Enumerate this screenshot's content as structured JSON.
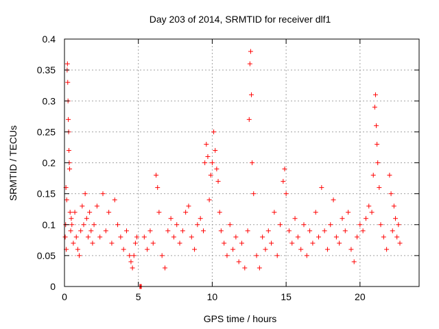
{
  "chart_data": {
    "type": "scatter",
    "title": "Day 203 of 2014, SRMTID for receiver dlf1",
    "xlabel": "GPS time / hours",
    "ylabel": "SRMTID / TECUs",
    "xlim": [
      0,
      24
    ],
    "ylim": [
      0,
      0.4
    ],
    "xticks": [
      0,
      5,
      10,
      15,
      20
    ],
    "yticks": [
      0,
      0.05,
      0.1,
      0.15,
      0.2,
      0.25,
      0.3,
      0.35,
      0.4
    ],
    "xtick_labels": [
      "0",
      "5",
      "10",
      "15",
      "20"
    ],
    "ytick_labels": [
      "0",
      "0.05",
      "0.1",
      "0.15",
      "0.2",
      "0.25",
      "0.3",
      "0.35",
      "0.4"
    ],
    "grid": true,
    "marker": "+",
    "color": "#ff0000",
    "series": [
      {
        "name": "SRMTID",
        "points": [
          [
            0.05,
            0.08
          ],
          [
            0.08,
            0.1
          ],
          [
            0.1,
            0.16
          ],
          [
            0.12,
            0.06
          ],
          [
            0.15,
            0.14
          ],
          [
            0.18,
            0.35
          ],
          [
            0.2,
            0.36
          ],
          [
            0.22,
            0.33
          ],
          [
            0.24,
            0.3
          ],
          [
            0.26,
            0.27
          ],
          [
            0.28,
            0.25
          ],
          [
            0.3,
            0.22
          ],
          [
            0.32,
            0.2
          ],
          [
            0.35,
            0.19
          ],
          [
            0.38,
            0.12
          ],
          [
            0.42,
            0.09
          ],
          [
            0.46,
            0.11
          ],
          [
            0.5,
            0.1
          ],
          [
            0.6,
            0.07
          ],
          [
            0.7,
            0.12
          ],
          [
            0.8,
            0.08
          ],
          [
            0.9,
            0.06
          ],
          [
            1.0,
            0.05
          ],
          [
            1.1,
            0.09
          ],
          [
            1.2,
            0.13
          ],
          [
            1.3,
            0.1
          ],
          [
            1.4,
            0.15
          ],
          [
            1.5,
            0.11
          ],
          [
            1.6,
            0.08
          ],
          [
            1.7,
            0.12
          ],
          [
            1.8,
            0.09
          ],
          [
            1.9,
            0.07
          ],
          [
            2.0,
            0.1
          ],
          [
            2.2,
            0.13
          ],
          [
            2.4,
            0.08
          ],
          [
            2.6,
            0.15
          ],
          [
            2.8,
            0.09
          ],
          [
            3.0,
            0.12
          ],
          [
            3.2,
            0.07
          ],
          [
            3.4,
            0.14
          ],
          [
            3.6,
            0.1
          ],
          [
            3.8,
            0.08
          ],
          [
            4.0,
            0.06
          ],
          [
            4.2,
            0.09
          ],
          [
            4.4,
            0.05
          ],
          [
            4.5,
            0.04
          ],
          [
            4.6,
            0.03
          ],
          [
            4.7,
            0.05
          ],
          [
            4.8,
            0.07
          ],
          [
            4.9,
            0.08
          ],
          [
            5.1,
            0.0
          ],
          [
            5.15,
            0.0
          ],
          [
            5.2,
            0.0
          ],
          [
            5.4,
            0.08
          ],
          [
            5.6,
            0.06
          ],
          [
            5.8,
            0.09
          ],
          [
            6.0,
            0.07
          ],
          [
            6.2,
            0.18
          ],
          [
            6.3,
            0.16
          ],
          [
            6.4,
            0.12
          ],
          [
            6.6,
            0.05
          ],
          [
            6.8,
            0.03
          ],
          [
            7.0,
            0.09
          ],
          [
            7.2,
            0.11
          ],
          [
            7.4,
            0.08
          ],
          [
            7.6,
            0.1
          ],
          [
            7.8,
            0.07
          ],
          [
            8.0,
            0.09
          ],
          [
            8.2,
            0.12
          ],
          [
            8.4,
            0.13
          ],
          [
            8.6,
            0.08
          ],
          [
            8.8,
            0.06
          ],
          [
            9.0,
            0.1
          ],
          [
            9.2,
            0.11
          ],
          [
            9.4,
            0.09
          ],
          [
            9.5,
            0.2
          ],
          [
            9.6,
            0.23
          ],
          [
            9.7,
            0.21
          ],
          [
            9.8,
            0.14
          ],
          [
            9.9,
            0.18
          ],
          [
            10.0,
            0.2
          ],
          [
            10.1,
            0.25
          ],
          [
            10.2,
            0.22
          ],
          [
            10.3,
            0.19
          ],
          [
            10.4,
            0.17
          ],
          [
            10.5,
            0.12
          ],
          [
            10.6,
            0.09
          ],
          [
            10.8,
            0.07
          ],
          [
            11.0,
            0.05
          ],
          [
            11.2,
            0.1
          ],
          [
            11.4,
            0.06
          ],
          [
            11.6,
            0.08
          ],
          [
            11.8,
            0.04
          ],
          [
            12.0,
            0.07
          ],
          [
            12.2,
            0.03
          ],
          [
            12.4,
            0.09
          ],
          [
            12.5,
            0.27
          ],
          [
            12.55,
            0.36
          ],
          [
            12.6,
            0.38
          ],
          [
            12.65,
            0.31
          ],
          [
            12.7,
            0.2
          ],
          [
            12.8,
            0.15
          ],
          [
            13.0,
            0.05
          ],
          [
            13.2,
            0.03
          ],
          [
            13.4,
            0.08
          ],
          [
            13.6,
            0.06
          ],
          [
            13.8,
            0.09
          ],
          [
            14.0,
            0.07
          ],
          [
            14.2,
            0.12
          ],
          [
            14.4,
            0.05
          ],
          [
            14.6,
            0.1
          ],
          [
            14.8,
            0.17
          ],
          [
            14.9,
            0.19
          ],
          [
            15.0,
            0.15
          ],
          [
            15.2,
            0.09
          ],
          [
            15.4,
            0.07
          ],
          [
            15.6,
            0.11
          ],
          [
            15.8,
            0.08
          ],
          [
            16.0,
            0.06
          ],
          [
            16.2,
            0.1
          ],
          [
            16.4,
            0.05
          ],
          [
            16.6,
            0.09
          ],
          [
            16.8,
            0.07
          ],
          [
            17.0,
            0.12
          ],
          [
            17.2,
            0.08
          ],
          [
            17.4,
            0.16
          ],
          [
            17.6,
            0.09
          ],
          [
            17.8,
            0.06
          ],
          [
            18.0,
            0.1
          ],
          [
            18.2,
            0.14
          ],
          [
            18.4,
            0.08
          ],
          [
            18.6,
            0.07
          ],
          [
            18.8,
            0.11
          ],
          [
            19.0,
            0.09
          ],
          [
            19.2,
            0.12
          ],
          [
            19.4,
            0.06
          ],
          [
            19.6,
            0.04
          ],
          [
            19.8,
            0.08
          ],
          [
            20.0,
            0.1
          ],
          [
            20.2,
            0.09
          ],
          [
            20.4,
            0.11
          ],
          [
            20.6,
            0.13
          ],
          [
            20.8,
            0.12
          ],
          [
            20.9,
            0.18
          ],
          [
            21.0,
            0.29
          ],
          [
            21.05,
            0.31
          ],
          [
            21.1,
            0.26
          ],
          [
            21.15,
            0.23
          ],
          [
            21.2,
            0.2
          ],
          [
            21.3,
            0.16
          ],
          [
            21.4,
            0.1
          ],
          [
            21.6,
            0.08
          ],
          [
            21.8,
            0.06
          ],
          [
            22.0,
            0.18
          ],
          [
            22.1,
            0.15
          ],
          [
            22.2,
            0.09
          ],
          [
            22.3,
            0.13
          ],
          [
            22.4,
            0.11
          ],
          [
            22.5,
            0.08
          ],
          [
            22.6,
            0.1
          ],
          [
            22.7,
            0.07
          ]
        ]
      }
    ]
  }
}
